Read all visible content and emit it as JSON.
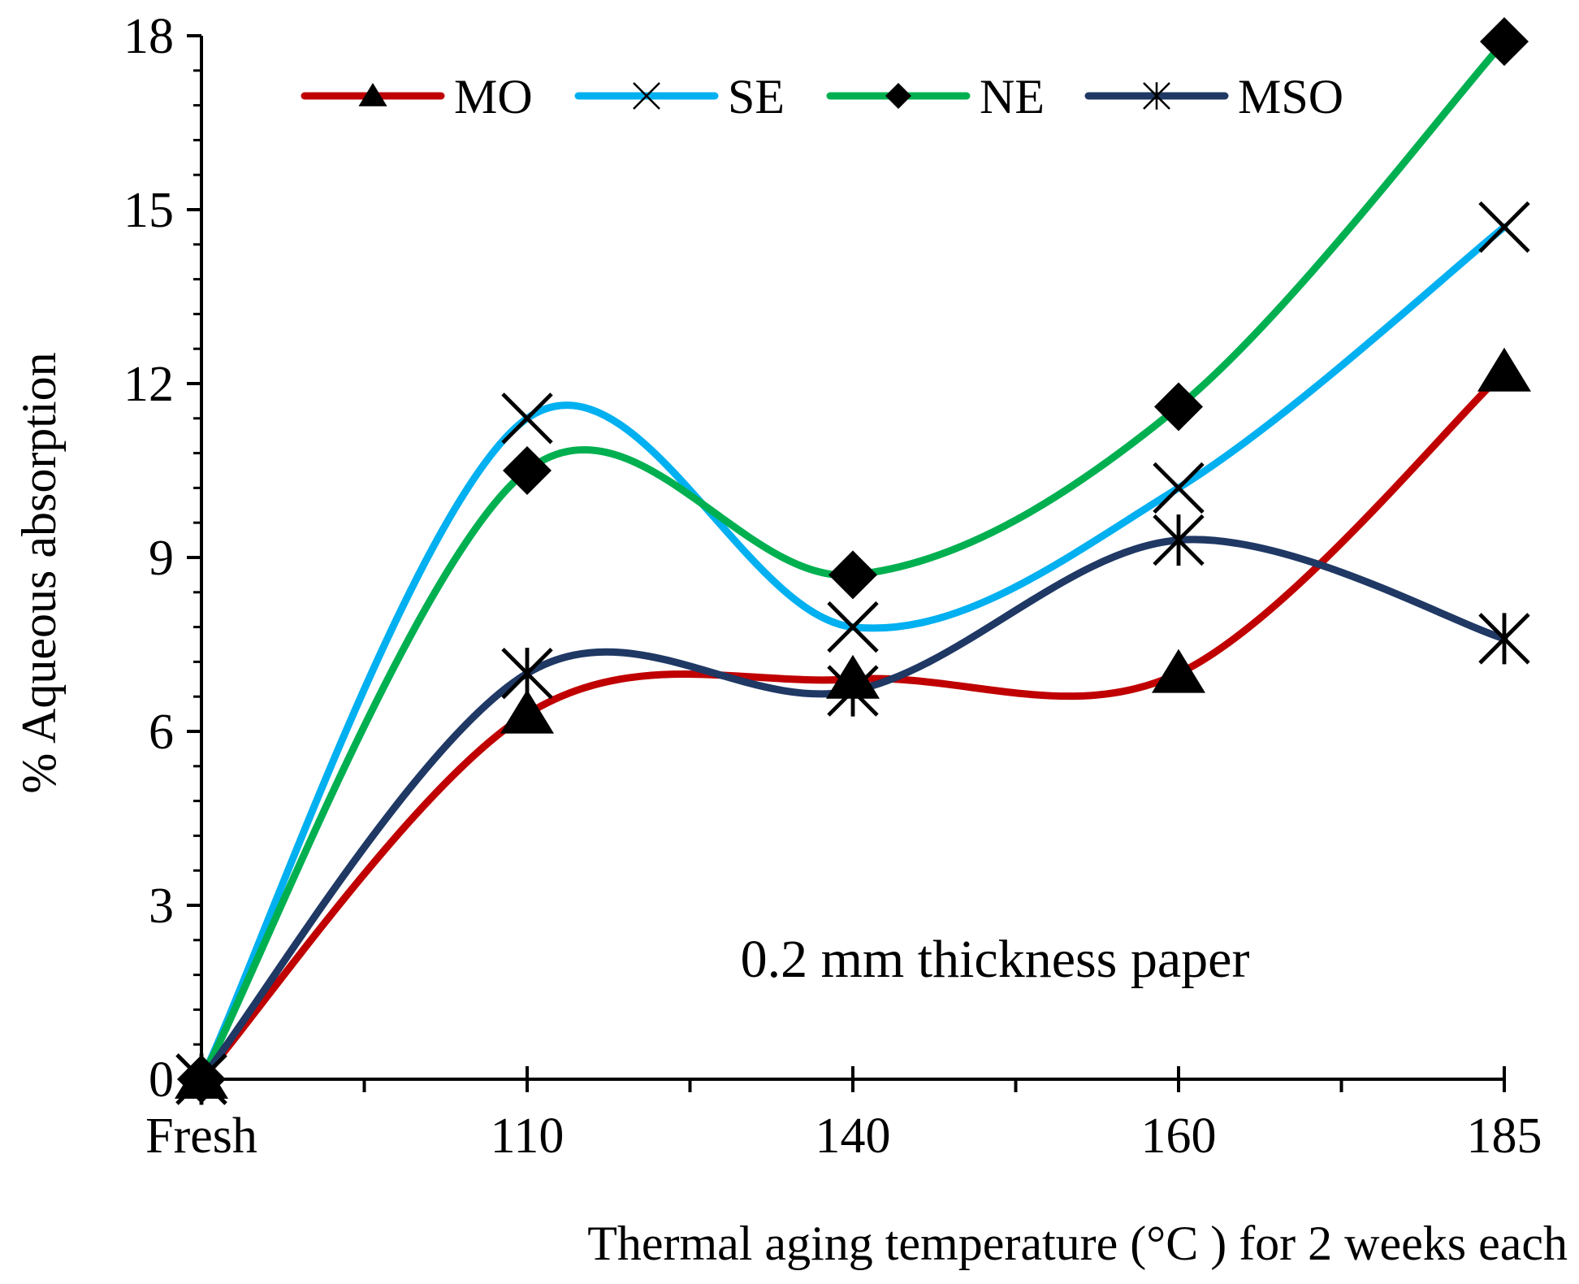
{
  "chart_data": {
    "type": "line",
    "categories": [
      "Fresh",
      "110",
      "140",
      "160",
      "185"
    ],
    "xlabel": "Thermal aging temperature (°C ) for 2 weeks each",
    "ylabel": "% Aqueous absorption",
    "ylim": [
      0,
      18
    ],
    "yticks": [
      "0",
      "3",
      "6",
      "9",
      "12",
      "15",
      "18"
    ],
    "grid": false,
    "legend_position": "top",
    "annotation": "0.2 mm thickness paper",
    "series": [
      {
        "name": "MO",
        "color": "#c00000",
        "marker": "triangle",
        "values": [
          0,
          6.3,
          6.9,
          7.0,
          12.2
        ]
      },
      {
        "name": "SE",
        "color": "#00b0f0",
        "marker": "x",
        "values": [
          0,
          11.4,
          7.8,
          10.2,
          14.7
        ]
      },
      {
        "name": "NE",
        "color": "#00b050",
        "marker": "diamond",
        "values": [
          0,
          10.5,
          8.7,
          11.6,
          17.9
        ]
      },
      {
        "name": "MSO",
        "color": "#1f3864",
        "marker": "asterisk",
        "values": [
          0,
          7.0,
          6.7,
          9.3,
          7.6
        ]
      }
    ]
  }
}
